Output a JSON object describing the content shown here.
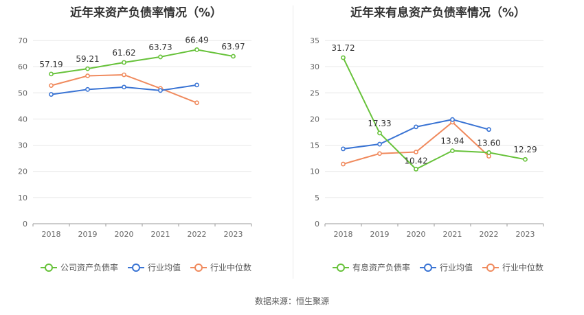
{
  "source_label": "数据来源：恒生聚源",
  "colors": {
    "green": "#67c23a",
    "blue": "#3a74d4",
    "orange": "#f08a5d"
  },
  "chart_data": [
    {
      "type": "line",
      "title": "近年来资产负债率情况（%）",
      "categories": [
        "2018",
        "2019",
        "2020",
        "2021",
        "2022",
        "2023"
      ],
      "ylim": [
        0,
        70
      ],
      "yticks": [
        0,
        10,
        20,
        30,
        40,
        50,
        60,
        70
      ],
      "grid": true,
      "legend_position": "bottom",
      "series": [
        {
          "name": "公司资产负债率",
          "color": "#67c23a",
          "values": [
            57.19,
            59.21,
            61.62,
            63.73,
            66.49,
            63.97
          ],
          "labels": [
            "57.19",
            "59.21",
            "61.62",
            "63.73",
            "66.49",
            "63.97"
          ]
        },
        {
          "name": "行业均值",
          "color": "#3a74d4",
          "values": [
            49.4,
            51.3,
            52.2,
            50.9,
            53.0,
            null
          ]
        },
        {
          "name": "行业中位数",
          "color": "#f08a5d",
          "values": [
            52.8,
            56.5,
            56.9,
            51.7,
            46.2,
            null
          ]
        }
      ]
    },
    {
      "type": "line",
      "title": "近年来有息资产负债率情况（%）",
      "categories": [
        "2018",
        "2019",
        "2020",
        "2021",
        "2022",
        "2023"
      ],
      "ylim": [
        0,
        35
      ],
      "yticks": [
        0,
        5,
        10,
        15,
        20,
        25,
        30,
        35
      ],
      "grid": true,
      "legend_position": "bottom",
      "series": [
        {
          "name": "有息资产负债率",
          "color": "#67c23a",
          "values": [
            31.72,
            17.33,
            10.42,
            13.94,
            13.6,
            12.29
          ],
          "labels": [
            "31.72",
            "17.33",
            "10.42",
            "13.94",
            "13.60",
            "12.29"
          ]
        },
        {
          "name": "行业均值",
          "color": "#3a74d4",
          "values": [
            14.3,
            15.2,
            18.5,
            19.9,
            18.0,
            null
          ]
        },
        {
          "name": "行业中位数",
          "color": "#f08a5d",
          "values": [
            11.4,
            13.4,
            13.7,
            19.4,
            12.9,
            null
          ]
        }
      ]
    }
  ]
}
